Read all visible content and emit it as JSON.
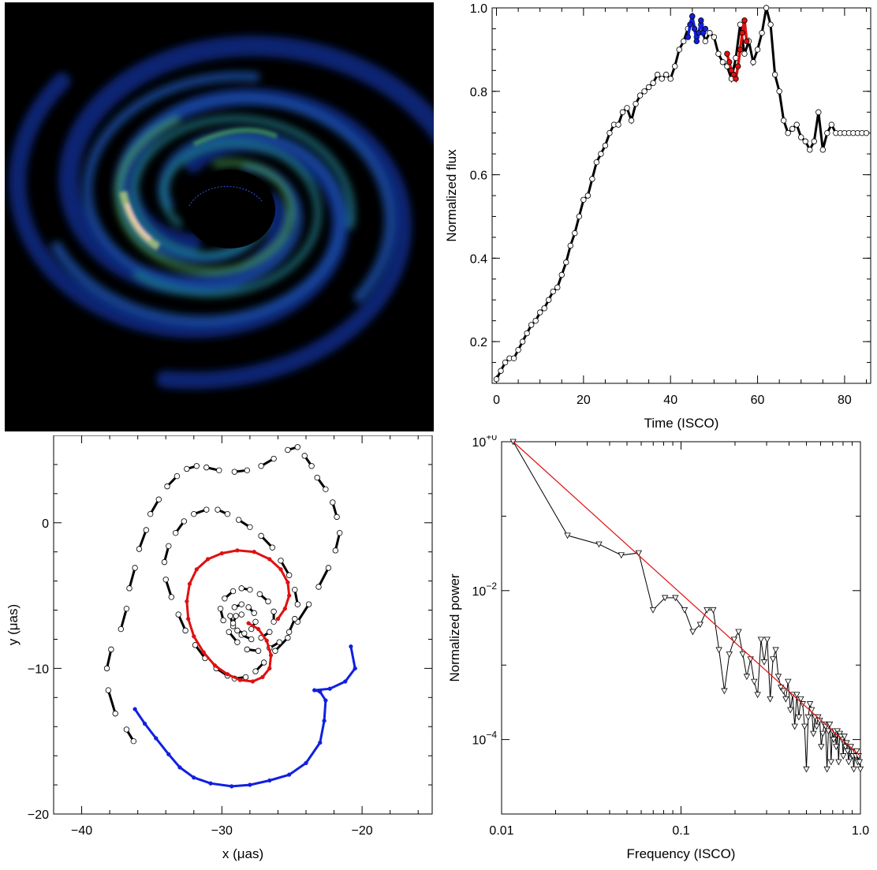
{
  "chart_data": [
    {
      "type": "image",
      "name": "accretion-disk-image",
      "colormap": [
        "#000000",
        "#06103a",
        "#0f2a86",
        "#1a4aa0",
        "#1f7a8a",
        "#4aa85a",
        "#b8d07a",
        "#f3c8b8"
      ],
      "background": "#000000"
    },
    {
      "type": "line",
      "xlabel": "Time (ISCO)",
      "ylabel": "Normalized flux",
      "xlim": [
        -1,
        86
      ],
      "ylim": [
        0.1,
        1.0
      ],
      "xticks": [
        0,
        20,
        40,
        60,
        80
      ],
      "yticks": [
        0.2,
        0.4,
        0.6,
        0.8,
        1.0
      ],
      "xticklabels": [
        "0",
        "20",
        "40",
        "60",
        "80"
      ],
      "yticklabels": [
        "0.2",
        "0.4",
        "0.6",
        "0.8",
        "1.0"
      ],
      "series": [
        {
          "color": "#000000",
          "marker": "open-circle",
          "x": [
            0,
            1,
            2,
            3,
            4,
            5,
            6,
            7,
            8,
            9,
            10,
            11,
            12,
            13,
            14,
            15,
            16,
            17,
            18,
            19,
            20,
            21,
            22,
            23,
            24,
            25,
            26,
            27,
            28,
            29,
            30,
            31,
            32,
            33,
            34,
            35,
            36,
            37,
            38,
            39,
            40,
            41,
            42,
            43,
            44,
            45,
            46,
            47,
            48,
            49,
            50,
            51,
            52,
            53,
            54,
            55,
            56,
            57,
            58,
            59,
            60,
            61,
            62,
            63,
            64,
            65,
            66,
            67,
            68,
            69,
            70,
            71,
            72,
            73,
            74,
            75,
            76,
            77,
            78,
            79,
            80,
            81,
            82,
            83,
            84,
            85
          ],
          "y": [
            0.11,
            0.13,
            0.15,
            0.16,
            0.16,
            0.18,
            0.2,
            0.22,
            0.24,
            0.25,
            0.27,
            0.28,
            0.3,
            0.32,
            0.33,
            0.36,
            0.39,
            0.43,
            0.46,
            0.5,
            0.54,
            0.55,
            0.59,
            0.63,
            0.65,
            0.67,
            0.7,
            0.72,
            0.72,
            0.75,
            0.76,
            0.73,
            0.77,
            0.79,
            0.8,
            0.81,
            0.82,
            0.84,
            0.83,
            0.84,
            0.83,
            0.86,
            0.9,
            0.92,
            0.95,
            0.98,
            0.93,
            0.96,
            0.92,
            0.94,
            0.93,
            0.89,
            0.87,
            0.86,
            0.83,
            0.88,
            0.96,
            0.89,
            0.92,
            0.87,
            0.9,
            0.94,
            1.0,
            0.96,
            0.84,
            0.8,
            0.73,
            0.7,
            0.71,
            0.72,
            0.69,
            0.68,
            0.66,
            0.68,
            0.75,
            0.66,
            0.7,
            0.72,
            0.7,
            0.7,
            0.7,
            0.7,
            0.7,
            0.7,
            0.7,
            0.7
          ]
        },
        {
          "color": "#1020e0",
          "marker": "filled-circle",
          "x": [
            44,
            44.5,
            45,
            45.5,
            46,
            46.5,
            47,
            47.5,
            48
          ],
          "y": [
            0.93,
            0.96,
            0.98,
            0.95,
            0.92,
            0.94,
            0.97,
            0.94,
            0.95
          ]
        },
        {
          "color": "#e01010",
          "marker": "filled-circle",
          "x": [
            53,
            53.5,
            54,
            54.5,
            55,
            55.5,
            56,
            56.5,
            57,
            57.5
          ],
          "y": [
            0.89,
            0.87,
            0.85,
            0.84,
            0.83,
            0.86,
            0.9,
            0.94,
            0.97,
            0.92
          ]
        }
      ]
    },
    {
      "type": "scatter",
      "xlabel": "x (μas)",
      "ylabel": "y (μas)",
      "xlim": [
        -42,
        -15
      ],
      "ylim": [
        -20,
        6
      ],
      "xticks": [
        -40,
        -30,
        -20
      ],
      "yticks": [
        -20,
        -10,
        0
      ],
      "xticklabels": [
        "−40",
        "−30",
        "−20"
      ],
      "yticklabels": [
        "−20",
        "−10",
        "0"
      ],
      "series": [
        {
          "color": "#000000",
          "marker": "open-circle",
          "x": [
            -36.3,
            -36.8,
            -37.6,
            -38.1,
            -38.2,
            -37.9,
            -37.2,
            -36.8,
            -36.6,
            -36.2,
            -35.9,
            -35.4,
            -35.1,
            -34.5,
            -33.9,
            -33.2,
            -32.5,
            -31.8,
            -31.1,
            -30.2,
            -29.1,
            -28.2,
            -27.2,
            -26.3,
            -25.3,
            -24.6,
            -24.1,
            -23.6,
            -23.2,
            -22.6,
            -22.1,
            -21.8,
            -21.6,
            -21.9,
            -22.4,
            -23.1,
            -23.8,
            -24.6,
            -25.3,
            -26.2,
            -27.0,
            -27.6,
            -28.3,
            -29.1,
            -29.6,
            -30.4,
            -31.2,
            -31.9,
            -32.6,
            -33.1,
            -33.6,
            -34.0,
            -34.1,
            -33.8,
            -33.3,
            -32.7,
            -32.0,
            -31.1,
            -30.3,
            -29.6,
            -28.8,
            -28.0,
            -27.2,
            -26.4,
            -25.8,
            -25.2,
            -24.8,
            -24.6,
            -24.8,
            -25.2,
            -25.9,
            -26.6,
            -27.4,
            -28.2,
            -28.9,
            -29.5,
            -29.9,
            -30.1,
            -29.8,
            -29.2,
            -28.6,
            -28.0,
            -27.3,
            -26.7,
            -26.3,
            -26.3,
            -26.6,
            -27.2,
            -27.9,
            -28.6,
            -29.2,
            -29.4,
            -29.1,
            -28.6,
            -28.1,
            -27.7,
            -27.6,
            -27.9,
            -28.4,
            -28.9,
            -29.2,
            -29.0,
            -28.6
          ],
          "y": [
            -15.0,
            -14.2,
            -13.1,
            -11.5,
            -10.0,
            -8.7,
            -7.3,
            -5.9,
            -4.5,
            -3.1,
            -1.8,
            -0.5,
            0.6,
            1.6,
            2.5,
            3.2,
            3.7,
            3.9,
            3.8,
            3.6,
            3.5,
            3.6,
            3.9,
            4.4,
            5.0,
            5.2,
            4.6,
            3.9,
            3.1,
            2.3,
            1.4,
            0.4,
            -0.7,
            -1.9,
            -3.1,
            -4.4,
            -5.6,
            -6.8,
            -7.9,
            -8.8,
            -9.6,
            -10.2,
            -10.6,
            -10.7,
            -10.5,
            -10.0,
            -9.3,
            -8.4,
            -7.4,
            -6.3,
            -5.1,
            -3.9,
            -2.7,
            -1.6,
            -0.7,
            0.1,
            0.6,
            0.9,
            0.9,
            0.6,
            0.2,
            -0.3,
            -0.9,
            -1.7,
            -2.6,
            -3.6,
            -4.6,
            -5.6,
            -6.6,
            -7.5,
            -8.2,
            -8.6,
            -8.8,
            -8.7,
            -8.2,
            -7.5,
            -6.7,
            -5.9,
            -5.2,
            -4.7,
            -4.5,
            -4.6,
            -4.9,
            -5.4,
            -6.1,
            -6.8,
            -7.5,
            -7.9,
            -8.0,
            -7.7,
            -7.1,
            -6.4,
            -5.8,
            -5.6,
            -5.8,
            -6.2,
            -6.8,
            -7.3,
            -7.6,
            -7.4,
            -6.9,
            -6.4,
            -6.3
          ]
        },
        {
          "color": "#e01010",
          "marker": "filled-circle",
          "x": [
            -26.0,
            -25.5,
            -25.2,
            -25.3,
            -25.8,
            -26.6,
            -27.7,
            -28.9,
            -30.0,
            -31.0,
            -31.8,
            -32.3,
            -32.5,
            -32.4,
            -32.0,
            -31.3,
            -30.5,
            -29.6,
            -28.7,
            -27.8,
            -27.1,
            -26.6,
            -26.5,
            -26.8,
            -27.4,
            -28.1
          ],
          "y": [
            -6.6,
            -5.9,
            -5.0,
            -4.1,
            -3.2,
            -2.5,
            -2.0,
            -1.9,
            -2.1,
            -2.5,
            -3.2,
            -4.2,
            -5.4,
            -6.6,
            -7.8,
            -8.9,
            -9.8,
            -10.4,
            -10.8,
            -10.9,
            -10.6,
            -10.0,
            -9.1,
            -8.1,
            -7.3,
            -6.9
          ]
        },
        {
          "color": "#1020e0",
          "marker": "filled-circle",
          "x": [
            -36.2,
            -35.5,
            -34.7,
            -33.8,
            -33.0,
            -32.0,
            -30.8,
            -29.3,
            -28.0,
            -26.6,
            -25.2,
            -24.0,
            -23.0,
            -22.7,
            -22.6,
            -23.0,
            -23.4,
            -22.3,
            -21.2,
            -20.5,
            -20.8
          ],
          "y": [
            -12.8,
            -13.8,
            -14.8,
            -15.9,
            -16.8,
            -17.5,
            -17.9,
            -18.1,
            -18.0,
            -17.7,
            -17.3,
            -16.5,
            -15.1,
            -13.6,
            -12.2,
            -11.6,
            -11.5,
            -11.4,
            -10.9,
            -10.0,
            -8.5
          ]
        }
      ]
    },
    {
      "type": "line",
      "xscale": "log",
      "yscale": "log",
      "xlabel": "Frequency (ISCO)",
      "ylabel": "Normalized power",
      "xlim": [
        0.01,
        1.0
      ],
      "ylim": [
        1e-05,
        1.0
      ],
      "xticks": [
        0.01,
        0.1,
        1.0
      ],
      "xticklabels": [
        "0.01",
        "0.1",
        "1.0"
      ],
      "yticks": [
        0.0001,
        0.01,
        1.0
      ],
      "series": [
        {
          "color": "#000000",
          "marker": "open-triangle-down",
          "x": [
            0.0116,
            0.0233,
            0.0349,
            0.0465,
            0.0581,
            0.0698,
            0.0814,
            0.093,
            0.1047,
            0.1163,
            0.1279,
            0.1395,
            0.1512,
            0.1628,
            0.1744,
            0.186,
            0.1977,
            0.2093,
            0.2209,
            0.2326,
            0.2442,
            0.2558,
            0.2674,
            0.2791,
            0.2907,
            0.3023,
            0.314,
            0.3256,
            0.3372,
            0.3488,
            0.3605,
            0.3721,
            0.3837,
            0.3953,
            0.407,
            0.4186,
            0.4302,
            0.4419,
            0.4535,
            0.4651,
            0.4767,
            0.4884,
            0.5,
            0.5116,
            0.5233,
            0.5349,
            0.5465,
            0.5581,
            0.5698,
            0.5814,
            0.593,
            0.6047,
            0.6163,
            0.6279,
            0.6395,
            0.6512,
            0.6628,
            0.6744,
            0.686,
            0.6977,
            0.7093,
            0.7209,
            0.7326,
            0.7442,
            0.7558,
            0.7674,
            0.7791,
            0.7907,
            0.8023,
            0.814,
            0.8256,
            0.8372,
            0.8488,
            0.8605,
            0.8721,
            0.8837,
            0.8953,
            0.907,
            0.9186,
            0.9302,
            0.9419,
            0.9535,
            0.9651,
            0.9767,
            0.9884,
            1.0
          ],
          "y": [
            1.0,
            0.055,
            0.042,
            0.03,
            0.032,
            0.0055,
            0.008,
            0.008,
            0.0055,
            0.0028,
            0.0035,
            0.0055,
            0.0055,
            0.0016,
            0.00045,
            0.0014,
            0.0022,
            0.0028,
            0.0014,
            0.0007,
            0.0012,
            0.0006,
            0.0004,
            0.0022,
            0.0011,
            0.0022,
            0.00035,
            0.0012,
            0.0016,
            0.0007,
            0.0005,
            0.00045,
            0.00035,
            0.0006,
            0.00025,
            0.0004,
            0.00015,
            0.0004,
            0.0002,
            0.00035,
            0.0003,
            0.00015,
            4e-05,
            0.0002,
            0.0003,
            0.00025,
            0.00012,
            0.0002,
            0.00015,
            0.0002,
            0.00018,
            8e-05,
            0.00012,
            0.00016,
            0.00015,
            4e-05,
            0.00013,
            0.00016,
            5e-05,
            0.00013,
            0.0001,
            0.00013,
            8e-05,
            0.00013,
            5e-05,
            0.00012,
            0.00011,
            0.0001,
            6e-05,
            0.00011,
            8e-05,
            9e-05,
            7e-05,
            5e-05,
            8e-05,
            8e-05,
            6e-05,
            6e-05,
            4e-05,
            7e-05,
            6e-05,
            7e-05,
            5e-05,
            6e-05,
            5e-05,
            4e-05
          ]
        },
        {
          "color": "#e01010",
          "marker": "none",
          "fit": true,
          "x": [
            0.0116,
            1.0
          ],
          "y": [
            1.0,
            6e-05
          ]
        }
      ]
    }
  ]
}
